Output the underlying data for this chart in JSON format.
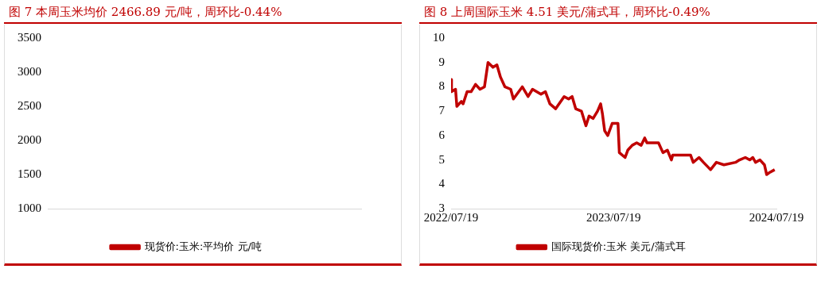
{
  "chart_data": [
    {
      "type": "line",
      "title": "图 7   本周玉米均价 2466.89 元/吨，周环比-0.44%",
      "categories": [
        null,
        null
      ],
      "series": [
        {
          "name": "现货价:玉米:平均价 元/吨",
          "color": "#c00000",
          "values": [
            null,
            null
          ]
        }
      ],
      "ylim": [
        1000,
        3500
      ],
      "yticks": [
        1000,
        1500,
        2000,
        2500,
        3000,
        3500
      ],
      "legend": "bottom"
    },
    {
      "type": "line",
      "title": "图 8 上周国际玉米 4.51 美元/蒲式耳，周环比-0.49%",
      "x": [
        "2022-07-19",
        "2022-07-20",
        "2022-07-29",
        "2022-08-01",
        "2022-08-11",
        "2022-08-15",
        "2022-08-24",
        "2022-09-02",
        "2022-09-12",
        "2022-09-22",
        "2022-10-02",
        "2022-10-10",
        "2022-10-21",
        "2022-10-30",
        "2022-11-07",
        "2022-11-17",
        "2022-11-30",
        "2022-12-06",
        "2022-12-26",
        "2023-01-08",
        "2023-01-18",
        "2023-02-06",
        "2023-02-16",
        "2023-02-26",
        "2023-03-11",
        "2023-03-30",
        "2023-04-09",
        "2023-04-17",
        "2023-04-25",
        "2023-05-08",
        "2023-05-18",
        "2023-05-25",
        "2023-06-03",
        "2023-06-13",
        "2023-06-20",
        "2023-06-24",
        "2023-06-29",
        "2023-07-06",
        "2023-07-16",
        "2023-07-29",
        "2023-08-01",
        "2023-08-14",
        "2023-08-20",
        "2023-08-30",
        "2023-09-09",
        "2023-09-19",
        "2023-09-27",
        "2023-10-02",
        "2023-10-28",
        "2023-11-07",
        "2023-11-17",
        "2023-11-26",
        "2023-11-29",
        "2024-01-08",
        "2024-01-14",
        "2024-01-27",
        "2024-02-06",
        "2024-02-22",
        "2024-03-06",
        "2024-03-23",
        "2024-04-18",
        "2024-04-27",
        "2024-05-10",
        "2024-05-20",
        "2024-05-27",
        "2024-06-02",
        "2024-06-12",
        "2024-06-22",
        "2024-06-27",
        "2024-07-05",
        "2024-07-15"
      ],
      "series": [
        {
          "name": "国际现货价:玉米 美元/蒲式耳",
          "color": "#c00000",
          "values": [
            8.3,
            7.8,
            7.9,
            7.2,
            7.4,
            7.3,
            7.8,
            7.8,
            8.1,
            7.9,
            8.0,
            9.0,
            8.8,
            8.9,
            8.4,
            8.0,
            7.9,
            7.5,
            8.0,
            7.6,
            7.9,
            7.7,
            7.8,
            7.3,
            7.1,
            7.6,
            7.5,
            7.6,
            7.1,
            7.0,
            6.4,
            6.8,
            6.7,
            7.0,
            7.3,
            6.9,
            6.2,
            6.0,
            6.5,
            6.5,
            5.3,
            5.1,
            5.4,
            5.6,
            5.7,
            5.6,
            5.9,
            5.7,
            5.7,
            5.3,
            5.4,
            5.0,
            5.2,
            5.2,
            4.9,
            5.1,
            4.9,
            4.6,
            4.9,
            4.8,
            4.9,
            5.0,
            5.1,
            5.0,
            5.1,
            4.9,
            5.0,
            4.8,
            4.4,
            4.5,
            4.6
          ]
        }
      ],
      "xlim": [
        "2022-07-19",
        "2024-07-19"
      ],
      "xticks": [
        {
          "value": "2022-07-19",
          "label": "2022/07/19"
        },
        {
          "value": "2023-07-19",
          "label": "2023/07/19"
        },
        {
          "value": "2024-07-19",
          "label": "2024/07/19"
        }
      ],
      "ylim": [
        3,
        10
      ],
      "yticks": [
        3,
        4,
        5,
        6,
        7,
        8,
        9,
        10
      ],
      "legend": "bottom"
    }
  ]
}
